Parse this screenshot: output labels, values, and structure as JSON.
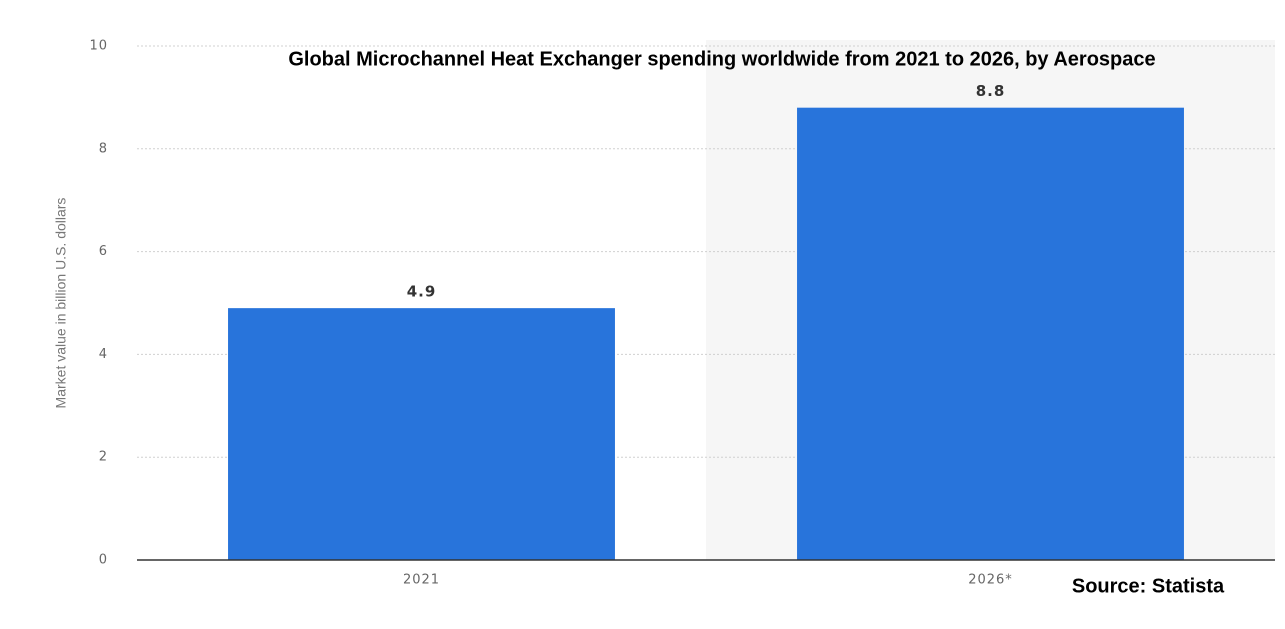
{
  "chart_data": {
    "type": "bar",
    "title": "Global Microchannel Heat Exchanger spending worldwide from 2021 to 2026, by Aerospace",
    "y_label": "Market value in billion U.S. dollars",
    "source": "Source: Statista",
    "categories": [
      "2021",
      "2026*"
    ],
    "values": [
      4.9,
      8.8
    ],
    "color": "#2874db",
    "ylim": [
      0,
      10
    ],
    "yticks": [
      0,
      2,
      4,
      6,
      8,
      10
    ],
    "grid": true
  }
}
